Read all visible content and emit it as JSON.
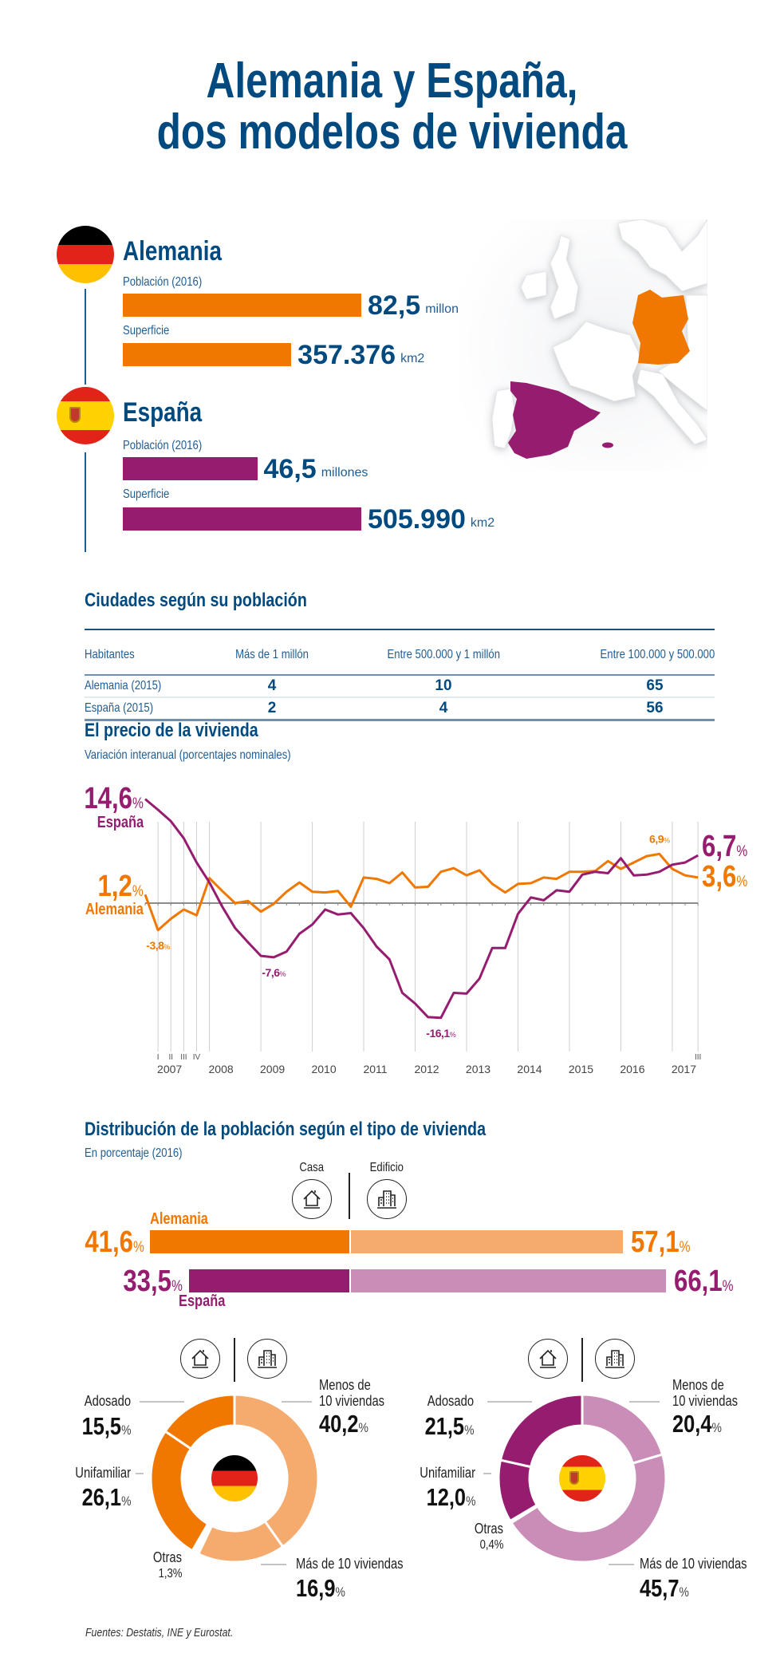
{
  "title": {
    "line1": "Alemania y España,",
    "line2": "dos modelos de vivienda"
  },
  "colors": {
    "navy": "#004a80",
    "orange": "#f07800",
    "orange_light": "#f5aa6e",
    "purple": "#961c70",
    "purple_light": "#c98db8"
  },
  "countries": [
    {
      "name": "Alemania",
      "flag": "germany-flag",
      "population_label": "Población (2016)",
      "population": 82.5,
      "population_text": "82,5",
      "population_unit": "millones",
      "area_label": "Superficie",
      "area": 357376,
      "area_text": "357.376",
      "area_unit": "km2"
    },
    {
      "name": "España",
      "flag": "spain-flag",
      "population_label": "Población (2016)",
      "population": 46.5,
      "population_text": "46,5",
      "population_unit": "millones",
      "area_label": "Superficie",
      "area": 505990,
      "area_text": "505.990",
      "area_unit": "km2"
    }
  ],
  "map": {
    "highlighted": [
      "España",
      "Alemania"
    ]
  },
  "cities_table": {
    "title": "Ciudades según su población",
    "headers": [
      "Habitantes",
      "Más de 1 millón",
      "Entre 500.000 y 1 millón",
      "Entre 100.000 y 500.000"
    ],
    "rows": [
      [
        "Alemania (2015)",
        "4",
        "10",
        "65"
      ],
      [
        "España (2015)",
        "2",
        "4",
        "56"
      ]
    ]
  },
  "chart_data": [
    {
      "type": "line",
      "title": "El precio de la vivienda",
      "subtitle": "Variación interanual (porcentajes nominales)",
      "x_year_labels": [
        "2007",
        "2008",
        "2009",
        "2010",
        "2011",
        "2012",
        "2013",
        "2014",
        "2015",
        "2016",
        "2017"
      ],
      "x_quarter_labels": [
        "I",
        "II",
        "III",
        "IV"
      ],
      "last_quarter_label": "III",
      "ylim": [
        -17,
        15
      ],
      "percent_sign": "%",
      "series": [
        {
          "name": "España",
          "color": "#961c70",
          "start_label": "14,6",
          "end_label": "6,7",
          "values": [
            14.6,
            13.1,
            11.5,
            9.1,
            5.7,
            2.9,
            -0.5,
            -3.5,
            -5.5,
            -7.4,
            -7.6,
            -6.8,
            -4.3,
            -3.0,
            -0.9,
            -1.6,
            -1.4,
            -3.5,
            -6.1,
            -7.9,
            -12.6,
            -14.1,
            -16.0,
            -16.1,
            -12.6,
            -12.7,
            -10.6,
            -6.3,
            -6.3,
            -1.5,
            0.8,
            0.4,
            1.8,
            1.6,
            4.0,
            4.4,
            4.2,
            6.3,
            3.9,
            4.0,
            4.4,
            5.4,
            5.7,
            6.7
          ]
        },
        {
          "name": "Alemania",
          "color": "#f07800",
          "start_label": "1,2",
          "end_label": "3,6",
          "values": [
            1.2,
            -3.8,
            -2.2,
            -0.9,
            -1.7,
            3.5,
            1.7,
            0.0,
            0.3,
            -1.2,
            -0.1,
            1.6,
            2.9,
            1.6,
            1.5,
            1.7,
            -0.5,
            3.6,
            3.4,
            2.8,
            4.3,
            2.2,
            2.3,
            4.4,
            4.9,
            3.9,
            4.6,
            2.7,
            1.5,
            2.7,
            2.8,
            3.6,
            3.4,
            4.4,
            4.4,
            4.5,
            5.9,
            4.8,
            5.7,
            6.6,
            6.9,
            4.8,
            3.9,
            3.6
          ]
        }
      ],
      "annotations": [
        {
          "series": "Alemania",
          "index": 1,
          "text": "-3,8"
        },
        {
          "series": "España",
          "index": 10,
          "text": "-7,6"
        },
        {
          "series": "España",
          "index": 23,
          "text": "-16,1"
        },
        {
          "series": "Alemania",
          "index": 40,
          "text": "6,9"
        }
      ]
    },
    {
      "type": "bar",
      "stacked": true,
      "title": "Distribución de la población según el tipo de vivienda",
      "subtitle": "En porcentaje (2016)",
      "categories": [
        "Casa",
        "Edificio"
      ],
      "series": [
        {
          "name": "Alemania",
          "values": [
            41.6,
            57.1
          ],
          "labels": [
            "41,6",
            "57,1"
          ],
          "colors": [
            "#f07800",
            "#f5aa6e"
          ]
        },
        {
          "name": "España",
          "values": [
            33.5,
            66.1
          ],
          "labels": [
            "33,5",
            "66,1"
          ],
          "colors": [
            "#961c70",
            "#c98db8"
          ]
        }
      ]
    },
    {
      "type": "pie",
      "name": "Alemania",
      "slices": [
        {
          "label": [
            "Menos de",
            "10 viviendas"
          ],
          "value": 40.2,
          "text": "40,2",
          "group": "Edificio",
          "color": "#f5aa6e"
        },
        {
          "label": [
            "Más de 10 viviendas"
          ],
          "value": 16.9,
          "text": "16,9",
          "group": "Edificio",
          "color": "#f5aa6e"
        },
        {
          "label": [
            "Otras"
          ],
          "value": 1.3,
          "text": "1,3",
          "group": "",
          "color": "#ffffff"
        },
        {
          "label": [
            "Unifamiliar"
          ],
          "value": 26.1,
          "text": "26,1",
          "group": "Casa",
          "color": "#f07800"
        },
        {
          "label": [
            "Adosado"
          ],
          "value": 15.5,
          "text": "15,5",
          "group": "Casa",
          "color": "#f07800"
        }
      ]
    },
    {
      "type": "pie",
      "name": "España",
      "slices": [
        {
          "label": [
            "Menos de",
            "10 viviendas"
          ],
          "value": 20.4,
          "text": "20,4",
          "group": "Edificio",
          "color": "#c98db8"
        },
        {
          "label": [
            "Más de 10 viviendas"
          ],
          "value": 45.7,
          "text": "45,7",
          "group": "Edificio",
          "color": "#c98db8"
        },
        {
          "label": [
            "Otras"
          ],
          "value": 0.4,
          "text": "0,4",
          "group": "",
          "color": "#ffffff"
        },
        {
          "label": [
            "Unifamiliar"
          ],
          "value": 12.0,
          "text": "12,0",
          "group": "Casa",
          "color": "#961c70"
        },
        {
          "label": [
            "Adosado"
          ],
          "value": 21.5,
          "text": "21,5",
          "group": "Casa",
          "color": "#961c70"
        }
      ]
    }
  ],
  "source": "Fuentes: Destatis, INE y Eurostat."
}
